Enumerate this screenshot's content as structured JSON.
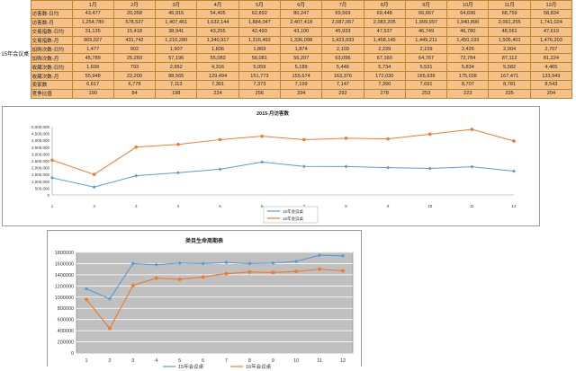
{
  "spreadsheet": {
    "group_label": "15年会议桌",
    "months": [
      "1月",
      "2月",
      "3月",
      "4月",
      "5月",
      "6月",
      "7月",
      "8月",
      "9月",
      "10月",
      "11月",
      "12月"
    ],
    "rows": [
      {
        "label": "访客数-日均",
        "values": [
          "43,477",
          "20,358",
          "46,915",
          "54,405",
          "62,892",
          "80,247",
          "69,569",
          "69,448",
          "66,667",
          "64,696",
          "68,759",
          "58,834"
        ]
      },
      {
        "label": "访客数-月",
        "values": [
          "1,254,780",
          "578,527",
          "1,407,461",
          "1,632,144",
          "1,884,047",
          "2,407,418",
          "2,087,067",
          "2,083,205",
          "1,999,997",
          "1,940,890",
          "2,061,255",
          "1,741,024"
        ]
      },
      {
        "label": "交易指数-日均",
        "values": [
          "31,135",
          "15,418",
          "38,941",
          "43,255",
          "42,493",
          "43,100",
          "45,933",
          "47,537",
          "46,749",
          "46,780",
          "48,561",
          "47,619"
        ]
      },
      {
        "label": "交易指数-月",
        "values": [
          "965,027",
          "431,742",
          "1,210,280",
          "1,340,917",
          "1,316,492",
          "1,336,098",
          "1,423,933",
          "1,458,145",
          "1,449,211",
          "1,450,193",
          "1,505,401",
          "1,476,203"
        ]
      },
      {
        "label": "加购次数-日均",
        "values": [
          "1,477",
          "902",
          "1,907",
          "1,836",
          "1,869",
          "1,874",
          "2,103",
          "2,239",
          "2,159",
          "2,426",
          "2,904",
          "2,707"
        ]
      },
      {
        "label": "加购次数-月",
        "values": [
          "45,789",
          "25,260",
          "57,196",
          "55,083",
          "56,081",
          "56,207",
          "63,096",
          "67,160",
          "64,767",
          "72,784",
          "87,112",
          "81,224"
        ]
      },
      {
        "label": "收藏次数-日均",
        "values": [
          "1,699",
          "793",
          "2,952",
          "4,316",
          "5,059",
          "5,189",
          "5,446",
          "5,734",
          "5,531",
          "5,834",
          "5,582",
          "4,465"
        ]
      },
      {
        "label": "收藏次数-月",
        "values": [
          "55,948",
          "22,200",
          "88,565",
          "129,494",
          "151,773",
          "155,674",
          "163,376",
          "172,030",
          "165,936",
          "175,028",
          "167,471",
          "133,949"
        ]
      },
      {
        "label": "卖家数",
        "values": [
          "6,617",
          "6,778",
          "7,113",
          "7,301",
          "7,373",
          "7,199",
          "7,147",
          "7,390",
          "7,691",
          "8,707",
          "8,781",
          "8,543"
        ]
      },
      {
        "label": "竞争比值",
        "values": [
          "190",
          "84",
          "198",
          "224",
          "256",
          "334",
          "292",
          "278",
          "253",
          "223",
          "235",
          "204"
        ]
      }
    ]
  },
  "chart_data": [
    {
      "type": "line",
      "title": "2015-月访客数",
      "x": [
        1,
        2,
        3,
        4,
        5,
        6,
        7,
        8,
        9,
        10,
        11,
        12
      ],
      "ylim": [
        0,
        5000000
      ],
      "yticks": [
        "0",
        "500,000",
        "1,000,000",
        "1,500,000",
        "2,000,000",
        "2,500,000",
        "3,000,000",
        "3,500,000",
        "4,000,000",
        "4,500,000",
        "5,000,000"
      ],
      "grid": false,
      "legend_position": "bottom",
      "series": [
        {
          "name": "15年会议桌",
          "color": "#5b9bd5",
          "values": [
            1254780,
            578527,
            1407461,
            1632144,
            1884047,
            2407418,
            2087067,
            2083205,
            1999997,
            1940890,
            2061255,
            1741024
          ]
        },
        {
          "name": "16年会议桌",
          "color": "#ed7d31",
          "values": [
            2550000,
            1500000,
            3500000,
            3700000,
            4050000,
            4300000,
            4050000,
            4150000,
            4100000,
            4450000,
            4800000,
            3950000
          ]
        }
      ]
    },
    {
      "type": "line",
      "title": "类目生命周期表",
      "x": [
        1,
        2,
        3,
        4,
        5,
        6,
        7,
        8,
        9,
        10,
        11,
        12
      ],
      "ylim": [
        0,
        1800000
      ],
      "yticks": [
        "0",
        "200000",
        "400000",
        "600000",
        "800000",
        "1000000",
        "1200000",
        "1400000",
        "1600000",
        "1800000"
      ],
      "grid": true,
      "legend_position": "bottom",
      "series": [
        {
          "name": "15年会议桌",
          "color": "#5b9bd5",
          "values": [
            1150000,
            970000,
            1600000,
            1580000,
            1610000,
            1600000,
            1620000,
            1600000,
            1610000,
            1640000,
            1750000,
            1740000
          ]
        },
        {
          "name": "16年会议桌",
          "color": "#ed7d31",
          "values": [
            960000,
            440000,
            1210000,
            1340000,
            1320000,
            1360000,
            1420000,
            1450000,
            1440000,
            1460000,
            1500000,
            1470000
          ]
        }
      ]
    }
  ]
}
